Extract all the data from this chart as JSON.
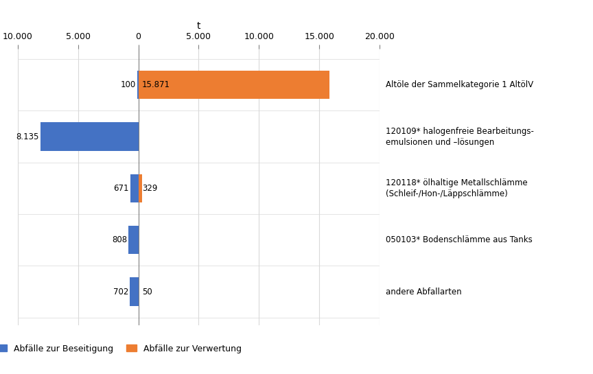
{
  "categories": [
    "Altöle der Sammelkategorie 1 AltölV",
    "120109* halogenfreie Bearbeitungs-\nemulsionen und –lösungen",
    "120118* ölhaltige Metallschlämme\n(Schleif-/Hon-/Läppschlämme)",
    "050103* Bodenschlämme aus Tanks",
    "andere Abfallarten"
  ],
  "beseitigung": [
    100,
    8135,
    671,
    808,
    702
  ],
  "verwertung": [
    15871,
    0,
    329,
    0,
    50
  ],
  "color_beseitigung": "#4472C4",
  "color_verwertung": "#ED7D31",
  "xlabel": "t",
  "xlim_left": -10000,
  "xlim_right": 20000,
  "xticks": [
    -10000,
    -5000,
    0,
    5000,
    10000,
    15000,
    20000
  ],
  "xticklabels": [
    "10.000",
    "5.000",
    "0",
    "5.000",
    "10.000",
    "15.000",
    "20.000"
  ],
  "legend_beseitigung": "Abfälle zur Beseitigung",
  "legend_verwertung": "Abfälle zur Verwertung",
  "bar_height": 0.55,
  "figsize": [
    8.64,
    5.45
  ],
  "dpi": 100,
  "background_color": "#ffffff",
  "grid_color": "#d9d9d9",
  "label_fontsize": 8.5,
  "axis_fontsize": 9
}
